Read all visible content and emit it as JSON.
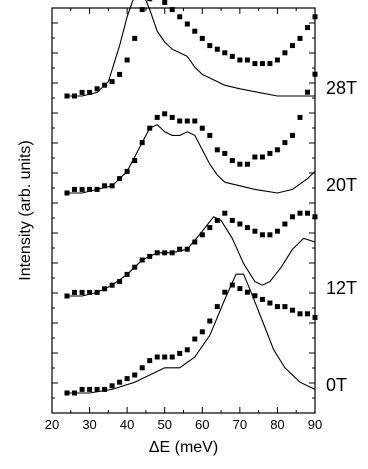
{
  "chart_data": {
    "type": "scatter",
    "title": "",
    "xlabel": "ΔE (meV)",
    "ylabel": "Intensity (arb. units)",
    "xlim": [
      20,
      90
    ],
    "x_ticks": [
      "20",
      "30",
      "40",
      "50",
      "60",
      "70",
      "80",
      "90"
    ],
    "y_ticks_labeled": false,
    "grid": false,
    "legend": "none",
    "marker_color": "#000000",
    "line_color": "#000000",
    "panels": [
      {
        "label": "28T",
        "points": [
          [
            24,
            0.0
          ],
          [
            26,
            0.0
          ],
          [
            28,
            0.01
          ],
          [
            30,
            0.01
          ],
          [
            32,
            0.02
          ],
          [
            34,
            0.03
          ],
          [
            36,
            0.04
          ],
          [
            38,
            0.06
          ],
          [
            40,
            0.1
          ],
          [
            42,
            0.16
          ],
          [
            44,
            0.24
          ],
          [
            46,
            0.27
          ],
          [
            48,
            0.28
          ],
          [
            50,
            0.26
          ],
          [
            52,
            0.24
          ],
          [
            54,
            0.22
          ],
          [
            56,
            0.2
          ],
          [
            58,
            0.18
          ],
          [
            60,
            0.16
          ],
          [
            62,
            0.14
          ],
          [
            64,
            0.13
          ],
          [
            66,
            0.12
          ],
          [
            68,
            0.11
          ],
          [
            70,
            0.1
          ],
          [
            72,
            0.1
          ],
          [
            74,
            0.09
          ],
          [
            76,
            0.09
          ],
          [
            78,
            0.09
          ],
          [
            80,
            0.1
          ],
          [
            82,
            0.12
          ],
          [
            84,
            0.14
          ],
          [
            86,
            0.16
          ],
          [
            88,
            0.19
          ],
          [
            90,
            0.22
          ]
        ],
        "curve": [
          [
            24,
            0.0
          ],
          [
            28,
            0.0
          ],
          [
            32,
            0.01
          ],
          [
            35,
            0.04
          ],
          [
            38,
            0.14
          ],
          [
            40,
            0.22
          ],
          [
            42,
            0.28
          ],
          [
            44,
            0.29
          ],
          [
            46,
            0.24
          ],
          [
            48,
            0.18
          ],
          [
            50,
            0.15
          ],
          [
            52,
            0.13
          ],
          [
            54,
            0.12
          ],
          [
            56,
            0.11
          ],
          [
            58,
            0.08
          ],
          [
            60,
            0.06
          ],
          [
            62,
            0.05
          ],
          [
            66,
            0.03
          ],
          [
            70,
            0.02
          ],
          [
            75,
            0.01
          ],
          [
            80,
            0.0
          ],
          [
            90,
            0.0
          ]
        ]
      },
      {
        "label": "20T",
        "points": [
          [
            24,
            0.0
          ],
          [
            26,
            0.01
          ],
          [
            28,
            0.01
          ],
          [
            30,
            0.01
          ],
          [
            32,
            0.01
          ],
          [
            34,
            0.02
          ],
          [
            36,
            0.02
          ],
          [
            38,
            0.04
          ],
          [
            40,
            0.06
          ],
          [
            42,
            0.09
          ],
          [
            44,
            0.14
          ],
          [
            46,
            0.18
          ],
          [
            48,
            0.21
          ],
          [
            50,
            0.22
          ],
          [
            52,
            0.21
          ],
          [
            54,
            0.2
          ],
          [
            56,
            0.2
          ],
          [
            58,
            0.2
          ],
          [
            60,
            0.18
          ],
          [
            62,
            0.16
          ],
          [
            64,
            0.12
          ],
          [
            66,
            0.11
          ],
          [
            68,
            0.09
          ],
          [
            70,
            0.08
          ],
          [
            72,
            0.08
          ],
          [
            74,
            0.1
          ],
          [
            76,
            0.1
          ],
          [
            78,
            0.11
          ],
          [
            80,
            0.12
          ],
          [
            82,
            0.14
          ],
          [
            84,
            0.16
          ],
          [
            86,
            0.21
          ],
          [
            88,
            0.28
          ],
          [
            90,
            0.33
          ]
        ],
        "curve": [
          [
            24,
            0.0
          ],
          [
            28,
            0.0
          ],
          [
            32,
            0.01
          ],
          [
            36,
            0.02
          ],
          [
            40,
            0.06
          ],
          [
            43,
            0.12
          ],
          [
            46,
            0.18
          ],
          [
            48,
            0.19
          ],
          [
            50,
            0.17
          ],
          [
            52,
            0.16
          ],
          [
            54,
            0.16
          ],
          [
            56,
            0.17
          ],
          [
            58,
            0.16
          ],
          [
            60,
            0.12
          ],
          [
            62,
            0.08
          ],
          [
            64,
            0.05
          ],
          [
            66,
            0.03
          ],
          [
            70,
            0.02
          ],
          [
            74,
            0.01
          ],
          [
            80,
            0.0
          ],
          [
            84,
            0.01
          ],
          [
            88,
            0.04
          ],
          [
            90,
            0.06
          ]
        ]
      },
      {
        "label": "12T",
        "points": [
          [
            24,
            0.0
          ],
          [
            26,
            0.01
          ],
          [
            28,
            0.01
          ],
          [
            30,
            0.01
          ],
          [
            32,
            0.01
          ],
          [
            34,
            0.02
          ],
          [
            36,
            0.03
          ],
          [
            38,
            0.04
          ],
          [
            40,
            0.06
          ],
          [
            42,
            0.08
          ],
          [
            44,
            0.1
          ],
          [
            46,
            0.11
          ],
          [
            48,
            0.12
          ],
          [
            50,
            0.12
          ],
          [
            52,
            0.12
          ],
          [
            54,
            0.13
          ],
          [
            56,
            0.13
          ],
          [
            58,
            0.15
          ],
          [
            60,
            0.17
          ],
          [
            62,
            0.19
          ],
          [
            64,
            0.21
          ],
          [
            66,
            0.23
          ],
          [
            68,
            0.21
          ],
          [
            70,
            0.2
          ],
          [
            72,
            0.19
          ],
          [
            74,
            0.18
          ],
          [
            76,
            0.17
          ],
          [
            78,
            0.17
          ],
          [
            80,
            0.18
          ],
          [
            82,
            0.2
          ],
          [
            84,
            0.22
          ],
          [
            86,
            0.23
          ],
          [
            88,
            0.23
          ],
          [
            90,
            0.22
          ]
        ],
        "curve": [
          [
            24,
            0.0
          ],
          [
            28,
            0.0
          ],
          [
            32,
            0.01
          ],
          [
            36,
            0.03
          ],
          [
            40,
            0.06
          ],
          [
            44,
            0.1
          ],
          [
            48,
            0.12
          ],
          [
            52,
            0.12
          ],
          [
            56,
            0.13
          ],
          [
            60,
            0.18
          ],
          [
            63,
            0.22
          ],
          [
            65,
            0.21
          ],
          [
            68,
            0.16
          ],
          [
            71,
            0.09
          ],
          [
            74,
            0.04
          ],
          [
            76,
            0.03
          ],
          [
            78,
            0.04
          ],
          [
            81,
            0.08
          ],
          [
            84,
            0.13
          ],
          [
            87,
            0.16
          ],
          [
            90,
            0.15
          ]
        ]
      },
      {
        "label": "0T",
        "points": [
          [
            24,
            0.0
          ],
          [
            26,
            0.0
          ],
          [
            28,
            0.01
          ],
          [
            30,
            0.01
          ],
          [
            32,
            0.01
          ],
          [
            34,
            0.01
          ],
          [
            36,
            0.02
          ],
          [
            38,
            0.03
          ],
          [
            40,
            0.04
          ],
          [
            42,
            0.05
          ],
          [
            44,
            0.07
          ],
          [
            46,
            0.09
          ],
          [
            48,
            0.1
          ],
          [
            50,
            0.1
          ],
          [
            52,
            0.1
          ],
          [
            54,
            0.11
          ],
          [
            56,
            0.12
          ],
          [
            58,
            0.15
          ],
          [
            60,
            0.17
          ],
          [
            62,
            0.2
          ],
          [
            64,
            0.24
          ],
          [
            66,
            0.28
          ],
          [
            68,
            0.3
          ],
          [
            70,
            0.29
          ],
          [
            72,
            0.28
          ],
          [
            74,
            0.27
          ],
          [
            76,
            0.26
          ],
          [
            78,
            0.25
          ],
          [
            80,
            0.24
          ],
          [
            82,
            0.24
          ],
          [
            84,
            0.23
          ],
          [
            86,
            0.22
          ],
          [
            88,
            0.22
          ],
          [
            90,
            0.21
          ]
        ],
        "curve": [
          [
            24,
            0.0
          ],
          [
            30,
            0.0
          ],
          [
            36,
            0.01
          ],
          [
            42,
            0.03
          ],
          [
            46,
            0.05
          ],
          [
            50,
            0.07
          ],
          [
            54,
            0.07
          ],
          [
            58,
            0.1
          ],
          [
            62,
            0.16
          ],
          [
            66,
            0.26
          ],
          [
            69,
            0.33
          ],
          [
            71,
            0.33
          ],
          [
            73,
            0.28
          ],
          [
            76,
            0.2
          ],
          [
            79,
            0.12
          ],
          [
            82,
            0.07
          ],
          [
            86,
            0.03
          ],
          [
            90,
            0.01
          ]
        ]
      }
    ]
  }
}
